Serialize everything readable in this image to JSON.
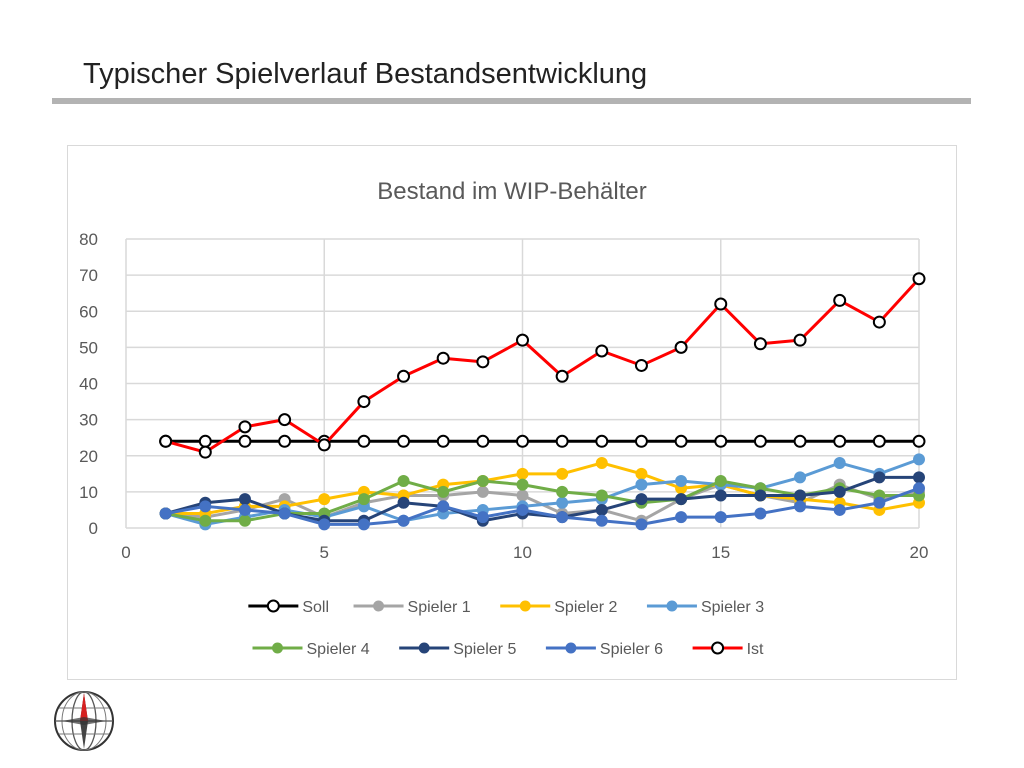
{
  "slide": {
    "title": "Typischer Spielverlauf Bestandsentwicklung"
  },
  "logo": {
    "icon": "compass-rose-icon"
  },
  "chart_data": {
    "type": "line",
    "title": "Bestand im WIP-Behälter",
    "xlabel": "",
    "ylabel": "",
    "xlim": [
      0,
      20
    ],
    "ylim": [
      0,
      80
    ],
    "x_ticks": [
      0,
      5,
      10,
      15,
      20
    ],
    "y_ticks": [
      0,
      10,
      20,
      30,
      40,
      50,
      60,
      70,
      80
    ],
    "grid": true,
    "legend_position": "bottom",
    "x": [
      1,
      2,
      3,
      4,
      5,
      6,
      7,
      8,
      9,
      10,
      11,
      12,
      13,
      14,
      15,
      16,
      17,
      18,
      19,
      20
    ],
    "series": [
      {
        "name": "Soll",
        "color": "#000000",
        "marker": "hollow",
        "values": [
          24,
          24,
          24,
          24,
          24,
          24,
          24,
          24,
          24,
          24,
          24,
          24,
          24,
          24,
          24,
          24,
          24,
          24,
          24,
          24
        ]
      },
      {
        "name": "Spieler 1",
        "color": "#a5a5a5",
        "marker": "filled",
        "values": [
          4,
          3,
          5,
          8,
          3,
          7,
          9,
          9,
          10,
          9,
          4,
          5,
          2,
          8,
          12,
          9,
          7,
          12,
          8,
          10
        ]
      },
      {
        "name": "Spieler 2",
        "color": "#ffc000",
        "marker": "filled",
        "values": [
          4,
          4,
          6,
          6,
          8,
          10,
          9,
          12,
          13,
          15,
          15,
          18,
          15,
          11,
          12,
          9,
          8,
          7,
          5,
          7
        ]
      },
      {
        "name": "Spieler 3",
        "color": "#5b9bd5",
        "marker": "filled",
        "values": [
          4,
          1,
          3,
          5,
          3,
          6,
          2,
          4,
          5,
          6,
          7,
          8,
          12,
          13,
          12,
          11,
          14,
          18,
          15,
          19
        ]
      },
      {
        "name": "Spieler 4",
        "color": "#70ad47",
        "marker": "filled",
        "values": [
          4,
          2,
          2,
          4,
          4,
          8,
          13,
          10,
          13,
          12,
          10,
          9,
          7,
          8,
          13,
          11,
          9,
          11,
          9,
          9
        ]
      },
      {
        "name": "Spieler 5",
        "color": "#264478",
        "marker": "filled",
        "values": [
          4,
          7,
          8,
          4,
          2,
          2,
          7,
          6,
          2,
          4,
          3,
          5,
          8,
          8,
          9,
          9,
          9,
          10,
          14,
          14
        ]
      },
      {
        "name": "Spieler 6",
        "color": "#4472c4",
        "marker": "filled",
        "values": [
          4,
          6,
          5,
          4,
          1,
          1,
          2,
          6,
          3,
          5,
          3,
          2,
          1,
          3,
          3,
          4,
          6,
          5,
          7,
          11
        ]
      },
      {
        "name": "Ist",
        "color": "#ff0000",
        "marker": "hollow",
        "values": [
          24,
          21,
          28,
          30,
          23,
          35,
          42,
          47,
          46,
          52,
          42,
          49,
          45,
          50,
          62,
          51,
          52,
          63,
          57,
          69
        ]
      }
    ]
  }
}
